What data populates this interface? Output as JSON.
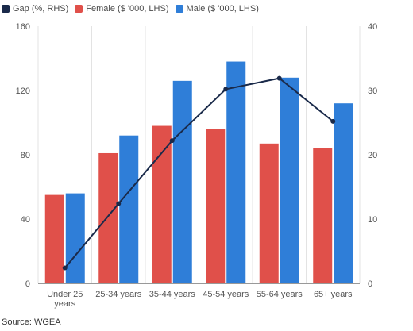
{
  "chart_data": {
    "type": "bar",
    "categories": [
      "Under 25 years",
      "25-34 years",
      "35-44 years",
      "45-54 years",
      "55-64 years",
      "65+ years"
    ],
    "category_lines": [
      [
        "Under 25",
        "years"
      ],
      [
        "25-34 years"
      ],
      [
        "35-44 years"
      ],
      [
        "45-54 years"
      ],
      [
        "55-64 years"
      ],
      [
        "65+ years"
      ]
    ],
    "series": [
      {
        "name": "Female ($ '000, LHS)",
        "kind": "bar",
        "axis": "left",
        "color": "#e0504a",
        "values": [
          55,
          81,
          98,
          96,
          87,
          84
        ]
      },
      {
        "name": "Male ($ '000, LHS)",
        "kind": "bar",
        "axis": "left",
        "color": "#2f7ed8",
        "values": [
          56,
          92,
          126,
          138,
          128,
          112
        ]
      },
      {
        "name": "Gap (%, RHS)",
        "kind": "line",
        "axis": "right",
        "color": "#1a2a4a",
        "values": [
          2.4,
          12.4,
          22.2,
          30.2,
          31.9,
          25.2
        ]
      }
    ],
    "y_left": {
      "min": 0,
      "max": 160,
      "ticks": [
        "0",
        "40",
        "80",
        "120",
        "160"
      ]
    },
    "y_right": {
      "min": 0,
      "max": 40,
      "ticks": [
        "0",
        "10",
        "20",
        "30",
        "40"
      ]
    },
    "grid": "vertical",
    "legend": "top-left"
  },
  "legend": {
    "gap": "Gap (%, RHS)",
    "female": "Female ($ '000, LHS)",
    "male": "Male ($ '000, LHS)"
  },
  "source": "Source: WGEA"
}
